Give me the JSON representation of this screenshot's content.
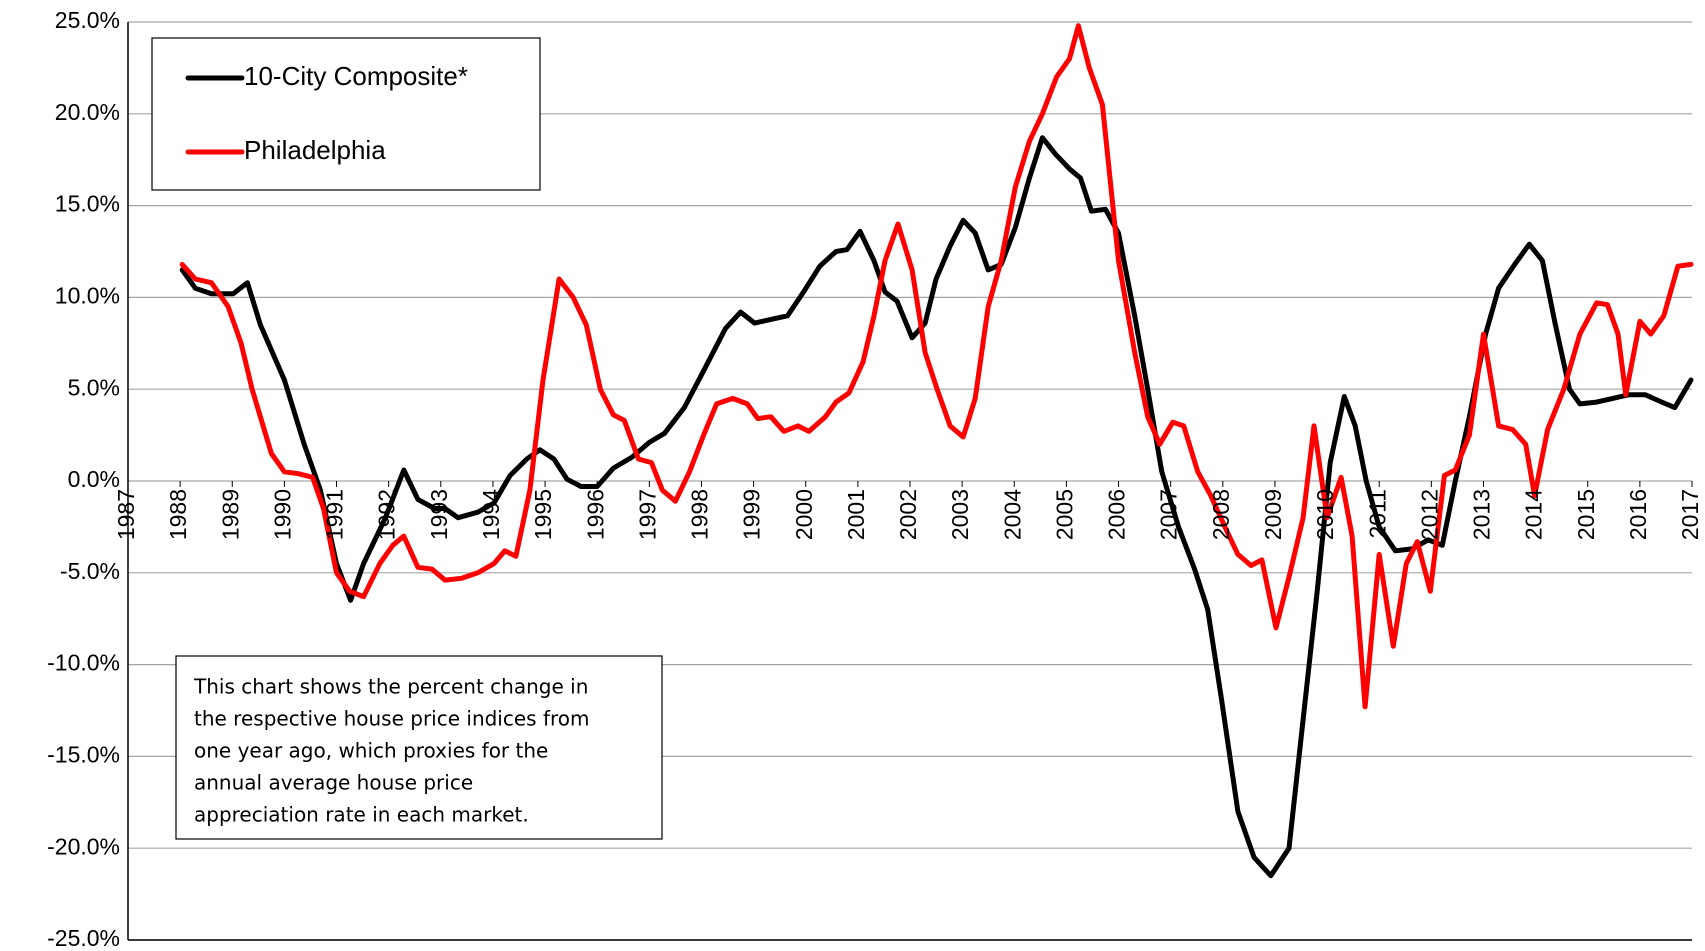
{
  "chart_data": {
    "type": "line",
    "xlim": [
      1987,
      2017
    ],
    "xticks": [
      1987,
      1988,
      1989,
      1990,
      1991,
      1992,
      1993,
      1994,
      1995,
      1996,
      1997,
      1998,
      1999,
      2000,
      2001,
      2002,
      2003,
      2004,
      2005,
      2006,
      2007,
      2008,
      2009,
      2010,
      2011,
      2012,
      2013,
      2014,
      2015,
      2016,
      2017
    ],
    "ylim": [
      -25,
      25
    ],
    "yticks": [
      {
        "value": -25,
        "label": "-25.0%"
      },
      {
        "value": -20,
        "label": "-20.0%"
      },
      {
        "value": -15,
        "label": "-15.0%"
      },
      {
        "value": -10,
        "label": "-10.0%"
      },
      {
        "value": -5,
        "label": "-5.0%"
      },
      {
        "value": 0,
        "label": "0.0%"
      },
      {
        "value": 5,
        "label": "5.0%"
      },
      {
        "value": 10,
        "label": "10.0%"
      },
      {
        "value": 15,
        "label": "15.0%"
      },
      {
        "value": 20,
        "label": "20.0%"
      },
      {
        "value": 25,
        "label": "25.0%"
      }
    ],
    "grid": true,
    "legend": "upper left",
    "annotation": [
      "This chart shows the percent change in",
      "the respective house price indices from",
      "one year ago, which proxies for the",
      "annual average house price",
      "appreciation rate in each market."
    ],
    "series": [
      {
        "name": "10-City Composite*",
        "color": "#000000",
        "x": [
          1988.04,
          1988.29,
          1988.6,
          1989.02,
          1989.29,
          1989.54,
          1990.0,
          1990.38,
          1990.69,
          1991.0,
          1991.27,
          1991.52,
          1991.94,
          1992.29,
          1992.56,
          1992.88,
          1993.08,
          1993.33,
          1993.71,
          1994.02,
          1994.33,
          1994.65,
          1994.9,
          1995.17,
          1995.42,
          1995.69,
          1996.0,
          1996.31,
          1996.67,
          1997.0,
          1997.29,
          1997.67,
          1998.04,
          1998.46,
          1998.75,
          1999.02,
          1999.33,
          1999.65,
          1999.96,
          2000.27,
          2000.58,
          2000.79,
          2001.04,
          2001.31,
          2001.52,
          2001.75,
          2002.04,
          2002.29,
          2002.5,
          2002.77,
          2003.02,
          2003.25,
          2003.5,
          2003.75,
          2004.02,
          2004.29,
          2004.54,
          2004.79,
          2005.06,
          2005.27,
          2005.48,
          2005.75,
          2006.0,
          2006.31,
          2006.56,
          2006.83,
          2007.15,
          2007.46,
          2007.71,
          2007.98,
          2008.29,
          2008.6,
          2008.92,
          2009.27,
          2009.54,
          2009.81,
          2010.06,
          2010.33,
          2010.54,
          2010.75,
          2011.0,
          2011.31,
          2011.63,
          2011.94,
          2012.21,
          2012.46,
          2012.73,
          2013.04,
          2013.29,
          2013.6,
          2013.88,
          2014.13,
          2014.38,
          2014.65,
          2014.85,
          2015.17,
          2015.48,
          2015.79,
          2016.1,
          2016.42,
          2016.67,
          2016.98
        ],
        "values": [
          11.5,
          10.5,
          10.2,
          10.2,
          10.8,
          8.5,
          5.5,
          2.0,
          -0.5,
          -4.5,
          -6.5,
          -4.5,
          -2.0,
          0.6,
          -1.0,
          -1.5,
          -1.5,
          -2.0,
          -1.7,
          -1.2,
          0.3,
          1.2,
          1.7,
          1.2,
          0.1,
          -0.3,
          -0.3,
          0.7,
          1.3,
          2.1,
          2.6,
          4.0,
          6.0,
          8.3,
          9.2,
          8.6,
          8.8,
          9.0,
          10.3,
          11.7,
          12.5,
          12.6,
          13.6,
          12.0,
          10.3,
          9.8,
          7.8,
          8.6,
          11.0,
          12.8,
          14.2,
          13.5,
          11.5,
          11.8,
          13.8,
          16.5,
          18.7,
          17.8,
          17.0,
          16.5,
          14.7,
          14.8,
          13.5,
          9.0,
          5.0,
          0.5,
          -2.5,
          -4.8,
          -7.0,
          -12.0,
          -18.0,
          -20.5,
          -21.5,
          -20.0,
          -13.0,
          -6.0,
          1.0,
          4.6,
          3.0,
          0.0,
          -2.5,
          -3.8,
          -3.7,
          -3.2,
          -3.5,
          0.0,
          3.5,
          8.0,
          10.5,
          11.8,
          12.9,
          12.0,
          8.5,
          5.0,
          4.2,
          4.3,
          4.5,
          4.7,
          4.7,
          4.3,
          4.0,
          5.5
        ]
      },
      {
        "name": "Philadelphia",
        "color": "#ff0000",
        "x": [
          1988.04,
          1988.29,
          1988.6,
          1988.92,
          1989.17,
          1989.38,
          1989.75,
          1990.0,
          1990.27,
          1990.54,
          1990.75,
          1991.0,
          1991.25,
          1991.52,
          1991.83,
          1992.08,
          1992.29,
          1992.56,
          1992.83,
          1993.08,
          1993.4,
          1993.71,
          1994.02,
          1994.23,
          1994.44,
          1994.71,
          1994.96,
          1995.27,
          1995.54,
          1995.79,
          1996.06,
          1996.31,
          1996.52,
          1996.79,
          1997.04,
          1997.25,
          1997.5,
          1997.77,
          1998.04,
          1998.29,
          1998.6,
          1998.88,
          1999.08,
          1999.33,
          1999.58,
          1999.85,
          2000.06,
          2000.38,
          2000.58,
          2000.83,
          2001.1,
          2001.31,
          2001.52,
          2001.77,
          2002.04,
          2002.29,
          2002.52,
          2002.77,
          2003.02,
          2003.25,
          2003.5,
          2003.75,
          2004.02,
          2004.29,
          2004.54,
          2004.81,
          2005.06,
          2005.23,
          2005.44,
          2005.69,
          2006.0,
          2006.31,
          2006.56,
          2006.79,
          2007.04,
          2007.25,
          2007.52,
          2007.77,
          2008.04,
          2008.29,
          2008.54,
          2008.75,
          2009.02,
          2009.29,
          2009.54,
          2009.75,
          2010.0,
          2010.27,
          2010.48,
          2010.73,
          2011.0,
          2011.27,
          2011.52,
          2011.73,
          2011.98,
          2012.25,
          2012.46,
          2012.73,
          2013.0,
          2013.29,
          2013.56,
          2013.81,
          2013.98,
          2014.23,
          2014.54,
          2014.85,
          2015.17,
          2015.38,
          2015.58,
          2015.73,
          2016.0,
          2016.21,
          2016.46,
          2016.73,
          2016.98
        ],
        "values": [
          11.8,
          11.0,
          10.8,
          9.5,
          7.5,
          5.0,
          1.5,
          0.5,
          0.4,
          0.2,
          -1.5,
          -5.0,
          -6.0,
          -6.3,
          -4.5,
          -3.5,
          -3.0,
          -4.7,
          -4.8,
          -5.4,
          -5.3,
          -5.0,
          -4.5,
          -3.8,
          -4.1,
          -0.5,
          5.5,
          11.0,
          10.0,
          8.5,
          5.0,
          3.6,
          3.3,
          1.2,
          1.0,
          -0.5,
          -1.1,
          0.5,
          2.5,
          4.2,
          4.5,
          4.2,
          3.4,
          3.5,
          2.7,
          3.0,
          2.7,
          3.5,
          4.3,
          4.8,
          6.5,
          9.0,
          12.0,
          14.0,
          11.5,
          7.0,
          5.0,
          3.0,
          2.4,
          4.5,
          9.5,
          12.0,
          16.0,
          18.5,
          20.0,
          22.0,
          23.0,
          24.8,
          22.5,
          20.5,
          12.0,
          7.0,
          3.5,
          2.0,
          3.2,
          3.0,
          0.5,
          -0.8,
          -2.5,
          -4.0,
          -4.6,
          -4.3,
          -8.0,
          -5.0,
          -2.0,
          3.0,
          -2.0,
          0.2,
          -3.0,
          -12.3,
          -4.0,
          -9.0,
          -4.5,
          -3.3,
          -6.0,
          0.3,
          0.6,
          2.5,
          8.0,
          3.0,
          2.8,
          2.0,
          -0.8,
          2.8,
          5.0,
          8.0,
          9.7,
          9.6,
          8.0,
          4.7,
          8.7,
          8.0,
          9.0,
          11.7,
          11.8
        ]
      }
    ]
  }
}
